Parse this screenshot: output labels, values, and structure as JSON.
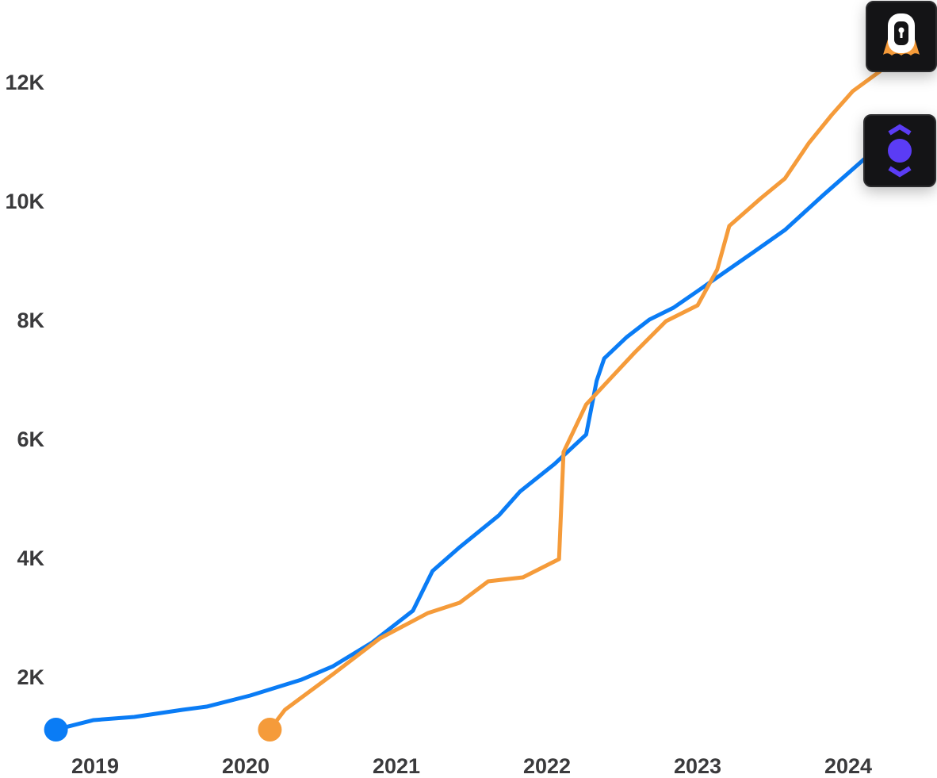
{
  "chart_data": {
    "type": "line",
    "title": "",
    "xlabel": "",
    "ylabel": "",
    "x_ticks": [
      "2019",
      "2020",
      "2021",
      "2022",
      "2023",
      "2024"
    ],
    "y_ticks": [
      "2K",
      "4K",
      "6K",
      "8K",
      "10K",
      "12K"
    ],
    "y_tick_values": [
      2000,
      4000,
      6000,
      8000,
      10000,
      12000
    ],
    "x_tick_values": [
      2019,
      2020,
      2021,
      2022,
      2023,
      2024
    ],
    "xlim": [
      2018.7,
      2024.25
    ],
    "ylim": [
      1000,
      13000
    ],
    "grid": false,
    "series": [
      {
        "icon": "blue-hexagon-dot-logo",
        "color": "#0a7cf5",
        "points": [
          [
            2018.74,
            1107
          ],
          [
            2018.99,
            1267
          ],
          [
            2019.26,
            1320
          ],
          [
            2019.58,
            1440
          ],
          [
            2019.74,
            1493
          ],
          [
            2020.03,
            1680
          ],
          [
            2020.37,
            1947
          ],
          [
            2020.58,
            2173
          ],
          [
            2020.84,
            2573
          ],
          [
            2021.11,
            3107
          ],
          [
            2021.24,
            3773
          ],
          [
            2021.42,
            4173
          ],
          [
            2021.68,
            4707
          ],
          [
            2021.82,
            5107
          ],
          [
            2022.05,
            5573
          ],
          [
            2022.26,
            6067
          ],
          [
            2022.33,
            6973
          ],
          [
            2022.38,
            7347
          ],
          [
            2022.53,
            7707
          ],
          [
            2022.68,
            8000
          ],
          [
            2022.84,
            8200
          ],
          [
            2023.0,
            8480
          ],
          [
            2023.37,
            9133
          ],
          [
            2023.58,
            9507
          ],
          [
            2023.84,
            10107
          ],
          [
            2024.11,
            10707
          ]
        ]
      },
      {
        "icon": "orange-ghost-lock-logo",
        "color": "#f59b3a",
        "points": [
          [
            2020.16,
            1107
          ],
          [
            2020.26,
            1440
          ],
          [
            2020.58,
            2040
          ],
          [
            2020.89,
            2640
          ],
          [
            2021.21,
            3067
          ],
          [
            2021.42,
            3240
          ],
          [
            2021.61,
            3600
          ],
          [
            2021.84,
            3667
          ],
          [
            2022.08,
            3973
          ],
          [
            2022.11,
            5773
          ],
          [
            2022.26,
            6573
          ],
          [
            2022.58,
            7440
          ],
          [
            2022.79,
            7973
          ],
          [
            2023.0,
            8240
          ],
          [
            2023.13,
            8840
          ],
          [
            2023.21,
            9573
          ],
          [
            2023.42,
            10040
          ],
          [
            2023.58,
            10373
          ],
          [
            2023.74,
            10973
          ],
          [
            2023.89,
            11440
          ],
          [
            2024.03,
            11840
          ],
          [
            2024.21,
            12173
          ]
        ]
      }
    ]
  }
}
